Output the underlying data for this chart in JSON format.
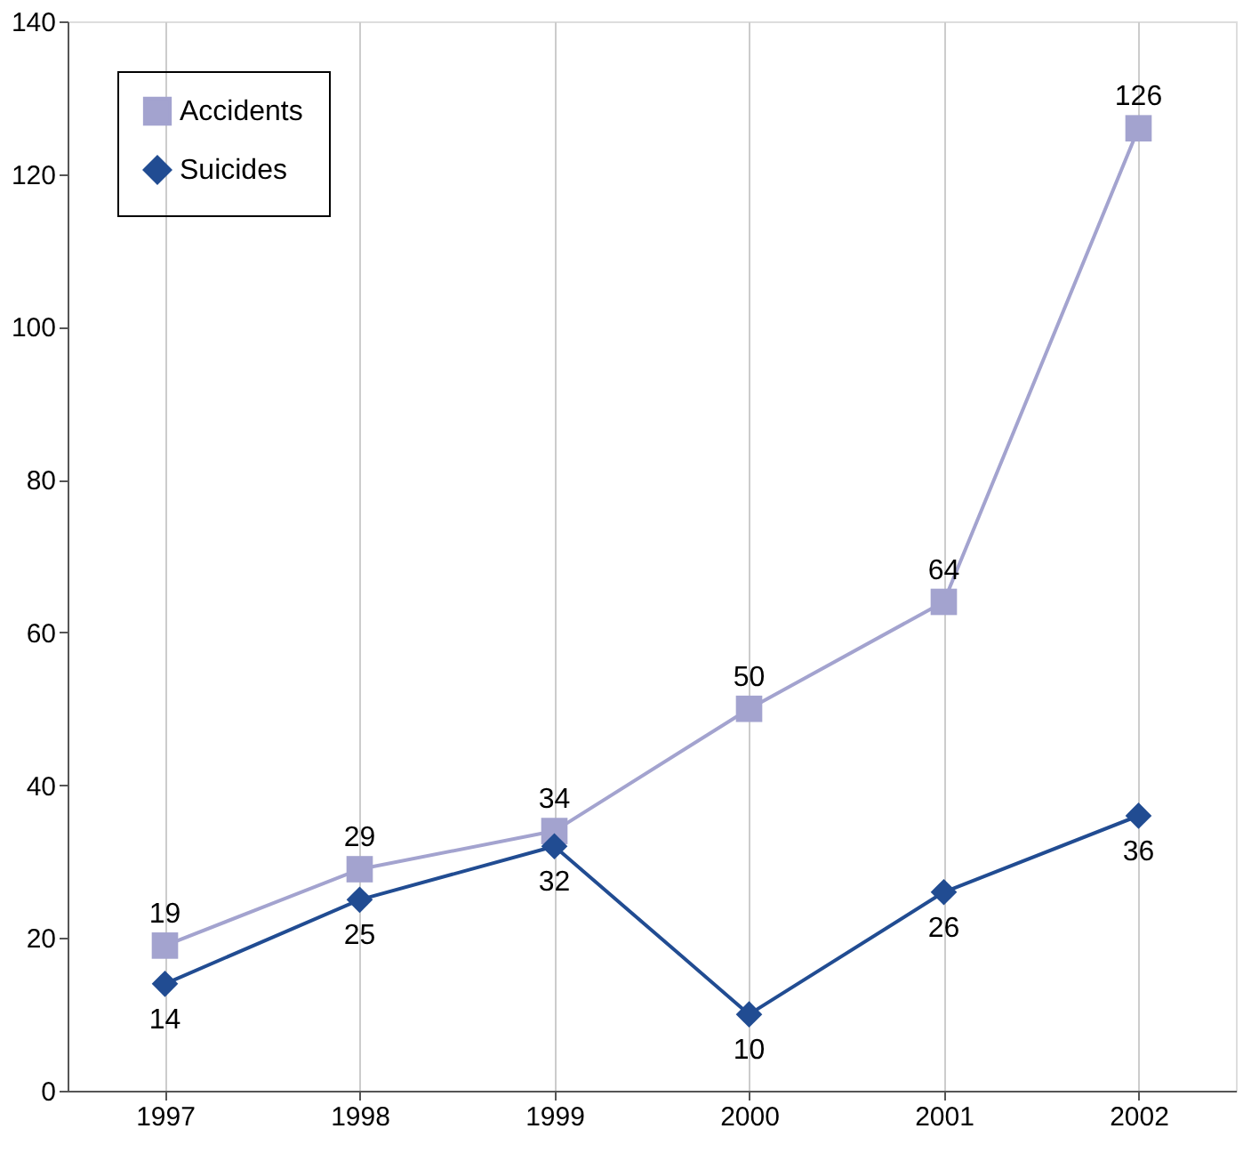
{
  "chart_data": {
    "type": "line",
    "categories": [
      "1997",
      "1998",
      "1999",
      "2000",
      "2001",
      "2002"
    ],
    "series": [
      {
        "name": "Accidents",
        "color": "#a3a3cf",
        "values": [
          19,
          29,
          34,
          50,
          64,
          126
        ],
        "marker": "square"
      },
      {
        "name": "Suicides",
        "color": "#214c92",
        "values": [
          14,
          25,
          32,
          10,
          26,
          36
        ],
        "marker": "diamond"
      }
    ],
    "ylim": [
      0,
      140
    ],
    "yticks": [
      0,
      20,
      40,
      60,
      80,
      100,
      120,
      140
    ],
    "grid": "x",
    "legend": "top left",
    "data_labels": true,
    "line_style": "solid"
  }
}
